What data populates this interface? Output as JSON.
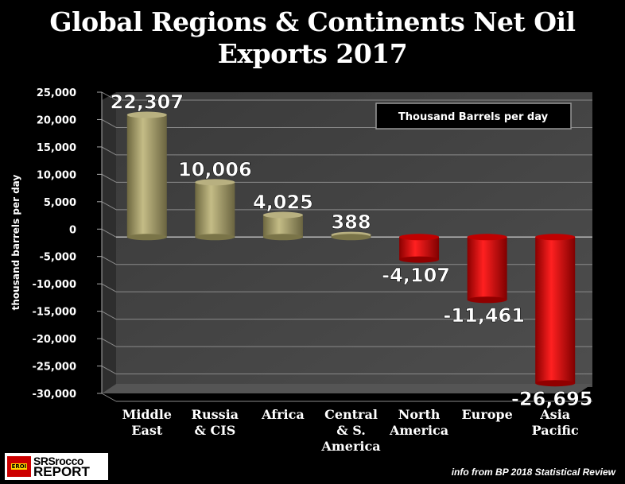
{
  "title_line1": "Global Regions & Continents Net Oil",
  "title_line2": "Exports 2017",
  "logo": {
    "badge": "EROI",
    "line1": "SRSrocco",
    "line2": "REPORT"
  },
  "source": "info from BP 2018 Statistical Review",
  "chart_data": {
    "type": "bar",
    "title": "Global Regions & Continents Net Oil Exports 2017",
    "ylabel": "thousand barrels per day",
    "xlabel": "",
    "legend": "Thousand Barrels per day",
    "legend_placement": "top-right",
    "ylim": [
      -30000,
      25000
    ],
    "yticks": [
      25000,
      20000,
      15000,
      10000,
      5000,
      0,
      -5000,
      -10000,
      -15000,
      -20000,
      -25000,
      -30000
    ],
    "ytick_labels": [
      "25,000",
      "20,000",
      "15,000",
      "10,000",
      "5,000",
      "0",
      "-5,000",
      "-10,000",
      "-15,000",
      "-20,000",
      "-25,000",
      "-30,000"
    ],
    "categories": [
      [
        "Middle",
        "East"
      ],
      [
        "Russia",
        "& CIS"
      ],
      [
        "Africa"
      ],
      [
        "Central",
        "& S.",
        "America"
      ],
      [
        "North",
        "America"
      ],
      [
        "Europe"
      ],
      [
        "Asia",
        "Pacific"
      ]
    ],
    "values": [
      22307,
      10006,
      4025,
      388,
      -4107,
      -11461,
      -26695
    ],
    "value_labels": [
      "22,307",
      "10,006",
      "4,025",
      "388",
      "-4,107",
      "-11,461",
      "-26,695"
    ],
    "colors": {
      "positive": "#a8a06a",
      "negative": "#d40000",
      "plot_bg": "#4a4a4a"
    }
  }
}
